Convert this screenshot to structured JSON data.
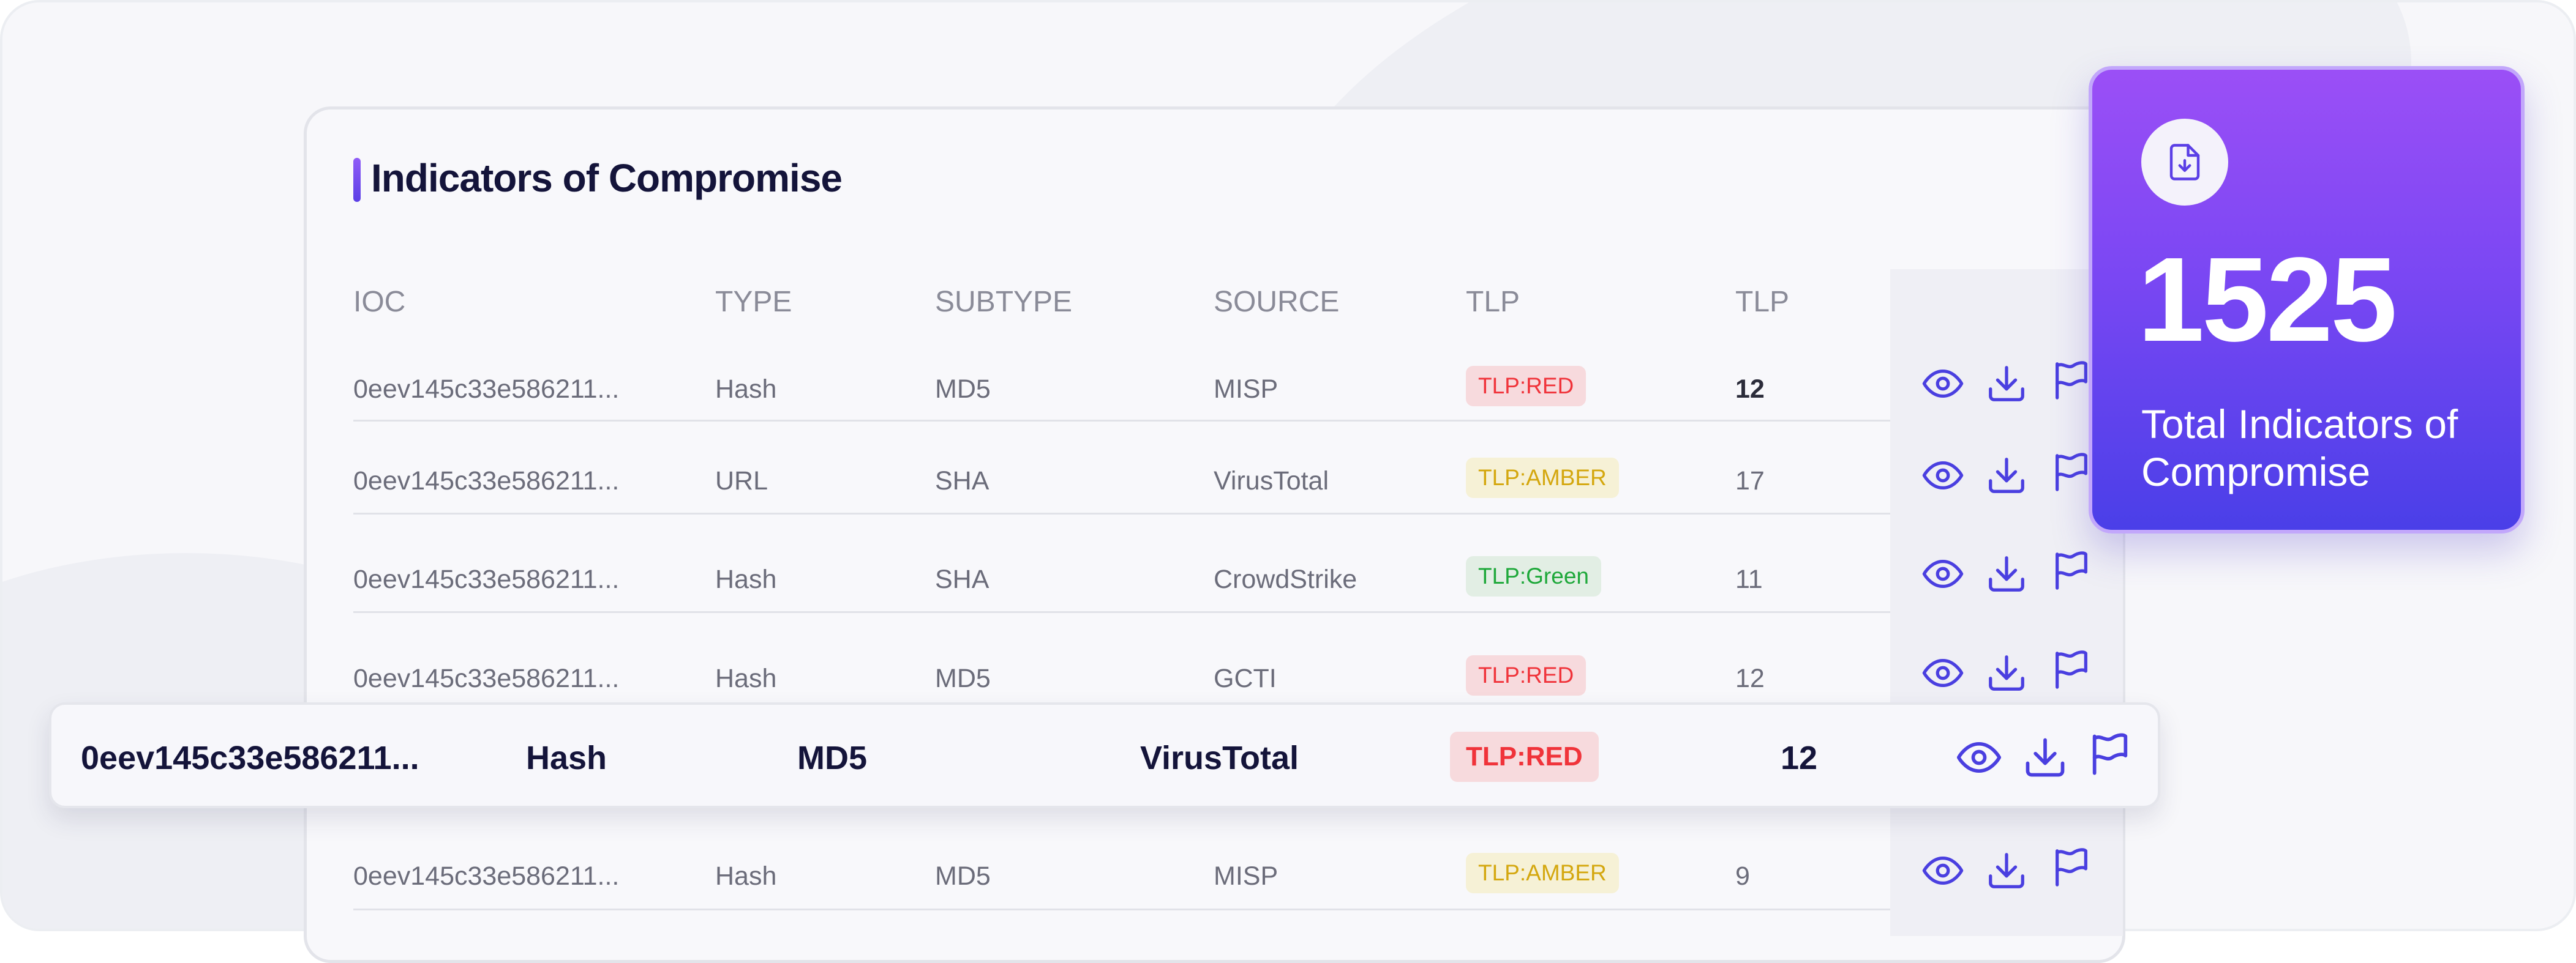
{
  "card": {
    "title": "Indicators of Compromise"
  },
  "table": {
    "columns": [
      "IOC",
      "TYPE",
      "SUBTYPE",
      "SOURCE",
      "TLP",
      "TLP"
    ],
    "rows": [
      {
        "ioc": "0eev145c33e586211...",
        "type": "Hash",
        "subtype": "MD5",
        "source": "MISP",
        "tlp": "TLP:RED",
        "tlp_level": "red",
        "count": "12"
      },
      {
        "ioc": "0eev145c33e586211...",
        "type": "URL",
        "subtype": "SHA",
        "source": "VirusTotal",
        "tlp": "TLP:AMBER",
        "tlp_level": "amber",
        "count": "17"
      },
      {
        "ioc": "0eev145c33e586211...",
        "type": "Hash",
        "subtype": "SHA",
        "source": "CrowdStrike",
        "tlp": "TLP:Green",
        "tlp_level": "green",
        "count": "11"
      },
      {
        "ioc": "0eev145c33e586211...",
        "type": "Hash",
        "subtype": "MD5",
        "source": "GCTI",
        "tlp": "TLP:RED",
        "tlp_level": "red",
        "count": "12"
      },
      {
        "ioc": "0eev145c33e586211...",
        "type": "Hash",
        "subtype": "MD5",
        "source": "MISP",
        "tlp": "TLP:AMBER",
        "tlp_level": "amber",
        "count": "9"
      }
    ],
    "row_actions": [
      "eye-icon",
      "download-icon",
      "flag-icon"
    ]
  },
  "highlighted_row": {
    "ioc": "0eev145c33e586211...",
    "type": "Hash",
    "subtype": "MD5",
    "source": "VirusTotal",
    "tlp": "TLP:RED",
    "tlp_level": "red",
    "count": "12"
  },
  "stat": {
    "icon": "file-download-icon",
    "value": "1525",
    "label": "Total Indicators of Compromise"
  },
  "colors": {
    "accent": "#5b3fe6",
    "icon": "#4a3fe0",
    "tlp_red": "#f0333a",
    "tlp_amber": "#d4a70e",
    "tlp_green": "#1ea83a"
  }
}
